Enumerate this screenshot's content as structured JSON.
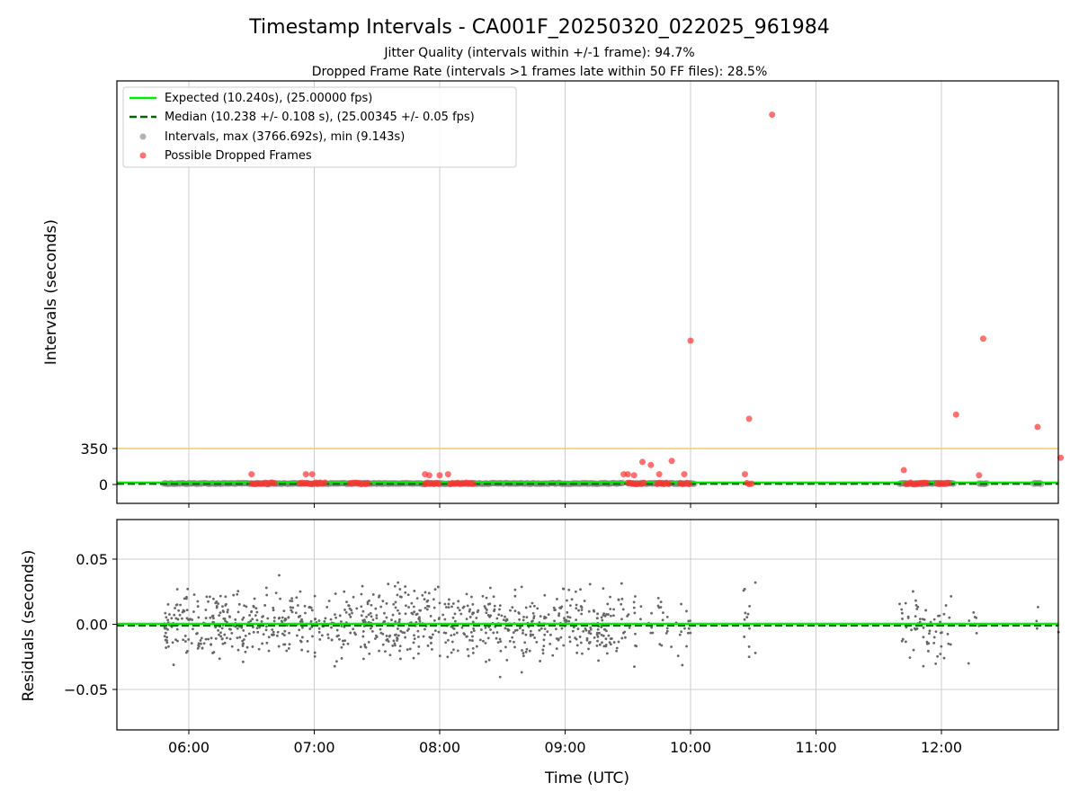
{
  "chart_data": {
    "title": "Timestamp Intervals - CA001F_20250320_022025_961984",
    "subtitle_1": "Jitter Quality (intervals within +/-1 frame): 94.7%",
    "subtitle_2": "Dropped Frame Rate (intervals >1 frames late within 50 FF files): 28.5%",
    "xlabel": "Time (UTC)",
    "x_ticks": [
      "06:00",
      "07:00",
      "08:00",
      "09:00",
      "10:00",
      "11:00",
      "12:00"
    ],
    "top": {
      "type": "scatter",
      "ylabel": "Intervals (seconds)",
      "y_ticks": [
        "0",
        "350"
      ],
      "threshold_line": 350,
      "legend": {
        "placement": "upper-left",
        "entries": [
          "Expected (10.240s), (25.00000 fps)",
          "Median (10.238 +/- 0.108 s), (25.00345 +/- 0.05 fps)",
          "Intervals, max (3766.692s), min (9.143s)",
          "Possible Dropped Frames"
        ]
      },
      "expected": 10.24,
      "median": 10.238,
      "dropped_frames": [
        {
          "t": "06:30",
          "v": 100
        },
        {
          "t": "06:56",
          "v": 100
        },
        {
          "t": "06:59",
          "v": 100
        },
        {
          "t": "07:53",
          "v": 100
        },
        {
          "t": "07:55",
          "v": 90
        },
        {
          "t": "08:00",
          "v": 90
        },
        {
          "t": "08:04",
          "v": 100
        },
        {
          "t": "09:28",
          "v": 100
        },
        {
          "t": "09:30",
          "v": 100
        },
        {
          "t": "09:33",
          "v": 90
        },
        {
          "t": "09:37",
          "v": 220
        },
        {
          "t": "09:41",
          "v": 190
        },
        {
          "t": "09:45",
          "v": 100
        },
        {
          "t": "09:51",
          "v": 230
        },
        {
          "t": "09:57",
          "v": 100
        },
        {
          "t": "10:00",
          "v": 1400
        },
        {
          "t": "10:26",
          "v": 100
        },
        {
          "t": "10:28",
          "v": 640
        },
        {
          "t": "10:39",
          "v": 3600
        },
        {
          "t": "11:42",
          "v": 140
        },
        {
          "t": "12:07",
          "v": 680
        },
        {
          "t": "12:18",
          "v": 90
        },
        {
          "t": "12:20",
          "v": 1420
        },
        {
          "t": "12:46",
          "v": 560
        },
        {
          "t": "12:57",
          "v": 260
        }
      ]
    },
    "bottom": {
      "type": "scatter",
      "ylabel": "Residuals (seconds)",
      "y_ticks": [
        "0.05",
        "0.00",
        "−0.05"
      ],
      "ylim": [
        -0.08,
        0.08
      ]
    },
    "colors": {
      "expected": "#00ee00",
      "median": "#006400",
      "intervals": "#808080",
      "dropped": "#ff3333",
      "threshold": "#f5c96b",
      "grid": "#cccccc"
    }
  }
}
